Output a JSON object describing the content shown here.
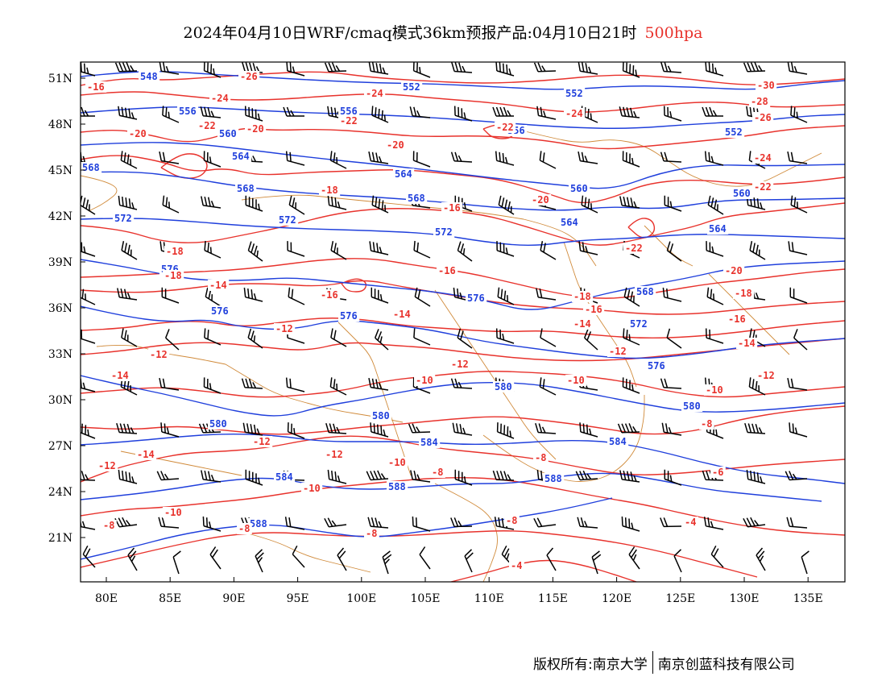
{
  "title": {
    "text": "2024年04月10日WRF/cmaq模式36km预报产品:04月10日21时",
    "level": "500hpa",
    "level_color": "#e8322c"
  },
  "axes": {
    "lat_labels": [
      "51N",
      "48N",
      "45N",
      "42N",
      "39N",
      "36N",
      "33N",
      "30N",
      "27N",
      "24N",
      "21N"
    ],
    "lon_labels": [
      "80E",
      "85E",
      "90E",
      "95E",
      "100E",
      "105E",
      "110E",
      "115E",
      "120E",
      "125E",
      "130E",
      "135E"
    ]
  },
  "colors": {
    "height_contours": "#1f3fdc",
    "temperature_contours": "#e8322c",
    "boundaries": "#d08a3a",
    "wind_barbs": "#000000"
  },
  "height_labels": [
    "548",
    "552",
    "556",
    "560",
    "564",
    "568",
    "572",
    "576",
    "580",
    "584",
    "588"
  ],
  "temperature_labels": [
    "-30",
    "-28",
    "-26",
    "-24",
    "-22",
    "-20",
    "-18",
    "-16",
    "-14",
    "-12",
    "-10",
    "-8",
    "-6",
    "-4"
  ],
  "footer": {
    "left": "版权所有:南京大学",
    "right": "南京创蓝科技有限公司"
  }
}
